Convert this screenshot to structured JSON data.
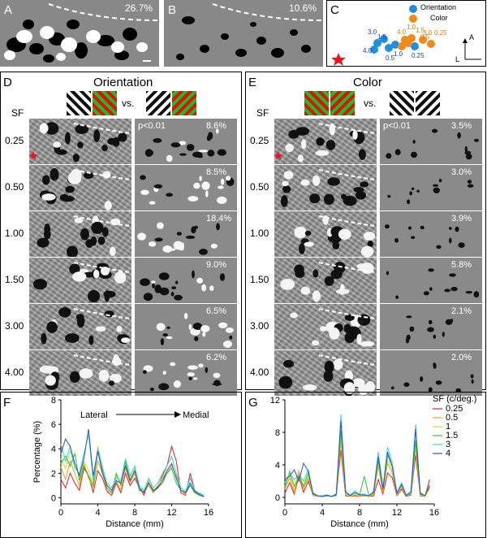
{
  "panel_letters": {
    "a": "A",
    "b": "B",
    "c": "C",
    "d": "D",
    "e": "E",
    "f": "F",
    "g": "G"
  },
  "panel_a": {
    "percent": "26.7%"
  },
  "panel_b": {
    "percent": "10.6%"
  },
  "panel_c": {
    "legend": {
      "orientation": "Orientation",
      "color": "Color"
    },
    "compass": {
      "anterior": "A",
      "lateral": "L"
    },
    "orientation_labels": [
      "3.0",
      "1.5",
      "4.0",
      "0.5",
      "1.0",
      "0.25"
    ],
    "color_labels": [
      "4.0",
      "1.0",
      "1.5",
      "0.5",
      "3.0",
      "0.25"
    ],
    "colors": {
      "orientation": "#1f8fe0",
      "color": "#f08a1c",
      "star": "#e8141e"
    }
  },
  "panel_d": {
    "title": "Orientation",
    "vs": "vs.",
    "sf_header": "SF",
    "p_label": "p<0.01",
    "rows": [
      {
        "sf": "0.25",
        "pct": "8.6%"
      },
      {
        "sf": "0.50",
        "pct": "8.5%"
      },
      {
        "sf": "1.00",
        "pct": "18.4%"
      },
      {
        "sf": "1.50",
        "pct": "9.0%"
      },
      {
        "sf": "3.00",
        "pct": "6.5%"
      },
      {
        "sf": "4.00",
        "pct": "6.2%"
      }
    ]
  },
  "panel_e": {
    "title": "Color",
    "vs": "vs.",
    "sf_header": "SF",
    "p_label": "p<0.01",
    "rows": [
      {
        "sf": "0.25",
        "pct": "3.5%"
      },
      {
        "sf": "0.50",
        "pct": "3.0%"
      },
      {
        "sf": "1.00",
        "pct": "3.9%"
      },
      {
        "sf": "1.50",
        "pct": "5.8%"
      },
      {
        "sf": "3.00",
        "pct": "2.1%"
      },
      {
        "sf": "4.00",
        "pct": "2.0%"
      }
    ]
  },
  "chart_data": [
    {
      "type": "line",
      "panel": "F",
      "xlabel": "Distance (mm)",
      "ylabel": "Percentage (%)",
      "annotation": {
        "left": "Lateral",
        "right": "Medial"
      },
      "xlim": [
        0,
        16
      ],
      "ylim": [
        -0.5,
        8
      ],
      "xticks": [
        0,
        4,
        8,
        12,
        16
      ],
      "yticks": [
        0,
        2,
        4,
        6,
        8
      ],
      "x": [
        0,
        0.5,
        1,
        1.5,
        2,
        2.5,
        3,
        3.5,
        4,
        4.5,
        5,
        5.5,
        6,
        6.5,
        7,
        7.5,
        8,
        8.5,
        9,
        9.5,
        10,
        10.5,
        11,
        11.5,
        12,
        12.5,
        13,
        13.5,
        14,
        14.5,
        15,
        15.5
      ],
      "series": [
        {
          "name": "0.25",
          "color": "#e0201e",
          "values": [
            1.5,
            0.8,
            2.0,
            1.2,
            0.6,
            2.4,
            1.8,
            0.4,
            2.2,
            1.6,
            0.5,
            0.2,
            1.2,
            0.4,
            2.0,
            1.0,
            1.6,
            0.8,
            0.2,
            1.4,
            0.6,
            0.9,
            1.8,
            2.6,
            4.2,
            3.0,
            0.4,
            0.2,
            2.0,
            0.6,
            0.2,
            0.1
          ]
        },
        {
          "name": "0.5",
          "color": "#f0a020",
          "values": [
            2.5,
            1.5,
            3.0,
            2.0,
            1.0,
            2.8,
            1.6,
            0.8,
            3.0,
            2.0,
            0.6,
            0.4,
            1.4,
            0.6,
            2.4,
            1.2,
            2.0,
            0.6,
            0.4,
            1.0,
            0.4,
            0.8,
            1.4,
            2.0,
            2.6,
            1.8,
            0.6,
            0.3,
            1.0,
            0.4,
            0.2,
            0.1
          ]
        },
        {
          "name": "1",
          "color": "#d8d830",
          "values": [
            3.2,
            2.4,
            3.8,
            2.8,
            1.6,
            3.0,
            2.2,
            1.2,
            4.2,
            2.6,
            1.0,
            0.6,
            1.8,
            1.2,
            2.8,
            1.6,
            2.4,
            0.8,
            0.6,
            1.4,
            0.6,
            1.0,
            1.6,
            2.2,
            2.8,
            1.6,
            0.8,
            0.4,
            1.2,
            0.5,
            0.3,
            0.1
          ]
        },
        {
          "name": "1.5",
          "color": "#30c030",
          "values": [
            2.8,
            3.4,
            2.6,
            3.6,
            1.4,
            2.6,
            1.8,
            1.0,
            3.8,
            2.2,
            0.8,
            0.4,
            2.0,
            1.0,
            3.0,
            1.4,
            2.2,
            0.6,
            0.5,
            1.2,
            0.5,
            0.8,
            1.2,
            2.0,
            2.4,
            1.2,
            0.6,
            0.4,
            1.0,
            0.4,
            0.2,
            0.1
          ]
        },
        {
          "name": "3",
          "color": "#30d8e0",
          "values": [
            4.4,
            3.0,
            4.2,
            2.4,
            2.0,
            3.6,
            5.2,
            1.4,
            4.0,
            2.4,
            1.2,
            0.8,
            1.6,
            1.4,
            3.2,
            1.8,
            2.6,
            1.0,
            0.6,
            1.6,
            0.8,
            1.2,
            2.0,
            2.6,
            3.4,
            2.0,
            0.8,
            0.5,
            1.6,
            0.6,
            0.4,
            0.2
          ]
        },
        {
          "name": "4",
          "color": "#3050d0",
          "values": [
            3.6,
            4.8,
            4.2,
            2.8,
            1.8,
            3.2,
            5.6,
            1.8,
            3.8,
            2.0,
            1.0,
            0.6,
            1.4,
            1.2,
            2.6,
            1.4,
            2.2,
            0.8,
            0.4,
            1.2,
            0.6,
            0.8,
            1.4,
            2.2,
            2.8,
            1.6,
            0.6,
            0.4,
            1.2,
            0.5,
            0.3,
            0.1
          ]
        }
      ]
    },
    {
      "type": "line",
      "panel": "G",
      "xlabel": "Distance (mm)",
      "legend_title": "SF (c/deg.)",
      "xlim": [
        0,
        16
      ],
      "ylim": [
        -0.8,
        12
      ],
      "xticks": [
        0,
        4,
        8,
        12,
        16
      ],
      "yticks": [
        0,
        4,
        8,
        12
      ],
      "x": [
        0,
        0.5,
        1,
        1.5,
        2,
        2.5,
        3,
        3.5,
        4,
        4.5,
        5,
        5.5,
        6,
        6.5,
        7,
        7.5,
        8,
        8.5,
        9,
        9.5,
        10,
        10.5,
        11,
        11.5,
        12,
        12.5,
        13,
        13.5,
        14,
        14.5,
        15,
        15.5
      ],
      "series": [
        {
          "name": "0.25",
          "color": "#e0201e",
          "values": [
            0.5,
            1.8,
            0.4,
            2.6,
            0.6,
            2.0,
            0.3,
            0.1,
            0.1,
            0.2,
            0.1,
            0.2,
            5.8,
            0.2,
            0.1,
            0.2,
            0.1,
            0.2,
            0.1,
            0.2,
            2.2,
            0.4,
            3.0,
            2.4,
            0.2,
            1.0,
            0.1,
            0.3,
            5.2,
            0.2,
            0.1,
            2.2
          ]
        },
        {
          "name": "0.5",
          "color": "#f0a020",
          "values": [
            1.0,
            2.4,
            0.6,
            3.0,
            1.0,
            2.4,
            0.2,
            0.1,
            0.1,
            0.2,
            0.1,
            0.2,
            6.8,
            0.4,
            0.1,
            0.3,
            0.1,
            0.2,
            0.1,
            0.4,
            3.8,
            0.6,
            4.2,
            3.0,
            0.3,
            1.2,
            0.1,
            0.4,
            6.0,
            0.3,
            0.1,
            1.2
          ]
        },
        {
          "name": "1",
          "color": "#d8d830",
          "values": [
            1.4,
            2.8,
            1.0,
            3.4,
            1.2,
            2.6,
            0.3,
            0.1,
            0.1,
            0.2,
            0.1,
            0.3,
            7.4,
            0.4,
            0.1,
            0.4,
            0.2,
            0.3,
            0.1,
            0.5,
            4.2,
            0.8,
            4.6,
            3.4,
            0.4,
            1.4,
            0.2,
            0.5,
            6.4,
            0.3,
            0.1,
            1.0
          ]
        },
        {
          "name": "1.5",
          "color": "#30c030",
          "values": [
            1.2,
            3.2,
            1.4,
            2.4,
            1.4,
            3.0,
            0.4,
            0.2,
            0.1,
            0.2,
            0.1,
            0.3,
            8.2,
            0.6,
            0.2,
            0.6,
            0.3,
            2.6,
            0.2,
            0.6,
            4.6,
            1.0,
            5.2,
            3.8,
            0.5,
            1.6,
            0.2,
            0.6,
            7.0,
            0.4,
            0.2,
            1.4
          ]
        },
        {
          "name": "3",
          "color": "#30d8e0",
          "values": [
            1.8,
            3.0,
            2.2,
            2.8,
            2.0,
            3.4,
            0.6,
            0.2,
            0.2,
            0.3,
            0.1,
            0.4,
            10.2,
            0.8,
            0.3,
            0.8,
            0.4,
            0.4,
            0.2,
            0.8,
            5.6,
            1.2,
            6.2,
            4.2,
            0.6,
            1.8,
            0.3,
            0.8,
            9.0,
            0.6,
            0.2,
            1.6
          ]
        },
        {
          "name": "4",
          "color": "#3050d0",
          "values": [
            2.2,
            2.6,
            3.4,
            2.0,
            4.2,
            3.2,
            0.5,
            0.2,
            0.1,
            0.3,
            0.1,
            0.4,
            9.4,
            0.6,
            0.2,
            0.6,
            0.3,
            0.3,
            0.2,
            0.6,
            5.0,
            1.0,
            5.6,
            3.8,
            0.5,
            1.6,
            0.2,
            0.6,
            8.4,
            0.5,
            0.2,
            1.4
          ]
        }
      ]
    }
  ]
}
